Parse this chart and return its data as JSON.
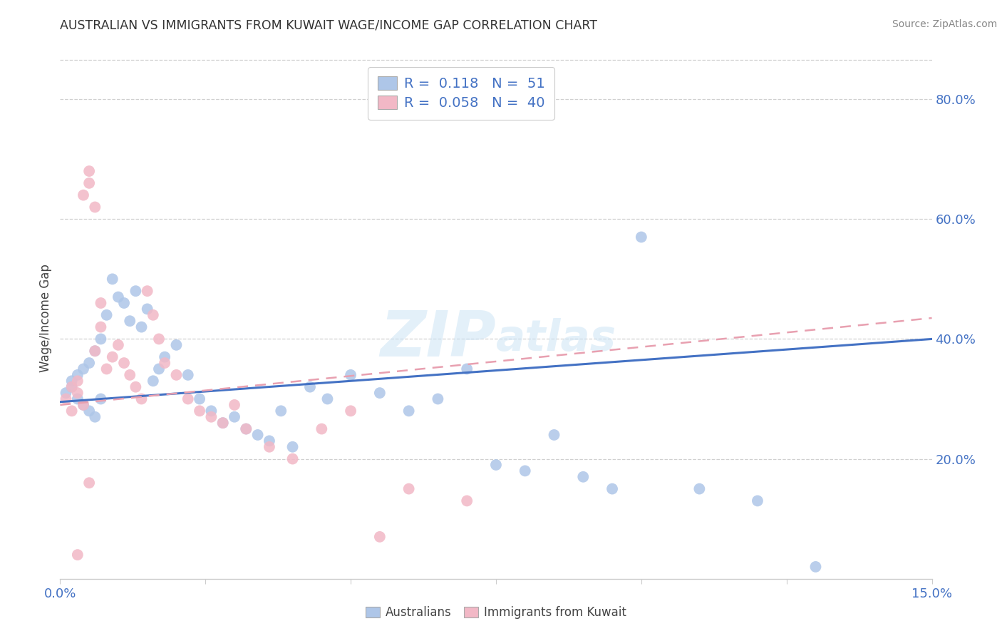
{
  "title": "AUSTRALIAN VS IMMIGRANTS FROM KUWAIT WAGE/INCOME GAP CORRELATION CHART",
  "source": "Source: ZipAtlas.com",
  "ylabel": "Wage/Income Gap",
  "ytick_labels": [
    "20.0%",
    "40.0%",
    "60.0%",
    "80.0%"
  ],
  "ytick_vals": [
    0.2,
    0.4,
    0.6,
    0.8
  ],
  "legend_r1": "0.118",
  "legend_n1": "51",
  "legend_r2": "0.058",
  "legend_n2": "40",
  "watermark_zip": "ZIP",
  "watermark_atlas": "atlas",
  "blue_color": "#aec6e8",
  "pink_color": "#f2b8c6",
  "line_blue": "#4472c4",
  "line_pink": "#e8a0b0",
  "xmin": 0.0,
  "xmax": 0.15,
  "ymin": 0.0,
  "ymax": 0.87,
  "aus_x": [
    0.001,
    0.002,
    0.002,
    0.003,
    0.003,
    0.004,
    0.004,
    0.005,
    0.005,
    0.006,
    0.006,
    0.007,
    0.007,
    0.008,
    0.009,
    0.01,
    0.011,
    0.012,
    0.013,
    0.014,
    0.015,
    0.016,
    0.017,
    0.018,
    0.02,
    0.022,
    0.024,
    0.026,
    0.028,
    0.03,
    0.032,
    0.034,
    0.036,
    0.038,
    0.04,
    0.043,
    0.046,
    0.05,
    0.055,
    0.06,
    0.065,
    0.07,
    0.075,
    0.08,
    0.085,
    0.09,
    0.095,
    0.1,
    0.11,
    0.12,
    0.13
  ],
  "aus_y": [
    0.31,
    0.32,
    0.33,
    0.3,
    0.34,
    0.29,
    0.35,
    0.28,
    0.36,
    0.27,
    0.38,
    0.3,
    0.4,
    0.44,
    0.5,
    0.47,
    0.46,
    0.43,
    0.48,
    0.42,
    0.45,
    0.33,
    0.35,
    0.37,
    0.39,
    0.34,
    0.3,
    0.28,
    0.26,
    0.27,
    0.25,
    0.24,
    0.23,
    0.28,
    0.22,
    0.32,
    0.3,
    0.34,
    0.31,
    0.28,
    0.3,
    0.35,
    0.19,
    0.18,
    0.24,
    0.17,
    0.15,
    0.57,
    0.15,
    0.13,
    0.02
  ],
  "kuw_x": [
    0.001,
    0.002,
    0.002,
    0.003,
    0.003,
    0.004,
    0.004,
    0.005,
    0.005,
    0.006,
    0.006,
    0.007,
    0.007,
    0.008,
    0.009,
    0.01,
    0.011,
    0.012,
    0.013,
    0.014,
    0.015,
    0.016,
    0.017,
    0.018,
    0.02,
    0.022,
    0.024,
    0.026,
    0.028,
    0.03,
    0.032,
    0.036,
    0.04,
    0.045,
    0.05,
    0.055,
    0.06,
    0.07,
    0.005,
    0.003
  ],
  "kuw_y": [
    0.3,
    0.32,
    0.28,
    0.33,
    0.31,
    0.29,
    0.64,
    0.68,
    0.66,
    0.62,
    0.38,
    0.42,
    0.46,
    0.35,
    0.37,
    0.39,
    0.36,
    0.34,
    0.32,
    0.3,
    0.48,
    0.44,
    0.4,
    0.36,
    0.34,
    0.3,
    0.28,
    0.27,
    0.26,
    0.29,
    0.25,
    0.22,
    0.2,
    0.25,
    0.28,
    0.07,
    0.15,
    0.13,
    0.16,
    0.04
  ],
  "xtick_positions": [
    0.0,
    0.025,
    0.05,
    0.075,
    0.1,
    0.125,
    0.15
  ],
  "grid_color": "#d0d0d0",
  "spine_color": "#cccccc",
  "tick_color": "#4472c4",
  "title_color": "#333333",
  "source_color": "#888888",
  "ylabel_color": "#444444"
}
